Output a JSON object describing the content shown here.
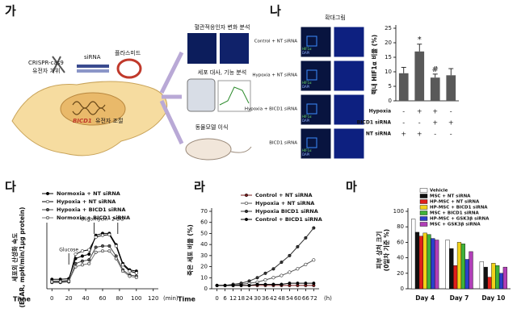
{
  "panels": [
    "가",
    "나",
    "다",
    "라",
    "마"
  ],
  "diagram": {
    "tools": [
      "CRISPR-cas9",
      "유전자 가위",
      "siRNA",
      "플라스미드"
    ],
    "gene": "BICD1",
    "gene_suffix": "유전자 조절",
    "analyses": [
      "혈관적응인자 변화 분석",
      "세포 대사, 기능 분석",
      "동물모델 이식"
    ]
  },
  "micrographs": {
    "title": "확대그림",
    "rows": [
      "Control + NT siRNA",
      "Hypoxia + NT siRNA",
      "Hypoxia + BICD1 siRNA",
      "BICD1 siRNA"
    ],
    "stain_labels": [
      "HIF1α",
      "DAPI"
    ]
  },
  "chart_data": [
    {
      "type": "bar",
      "ylabel": "핵내 HIF1α 비율 (%)",
      "values": [
        9.5,
        17,
        8,
        8.8
      ],
      "errors": [
        2,
        2.5,
        1.2,
        2.3
      ],
      "bar_labels": [
        null,
        "*",
        "#",
        null
      ],
      "color": "#595959",
      "ylim": [
        0,
        25
      ],
      "yticks": [
        0,
        5,
        10,
        15,
        20,
        25
      ],
      "conditions": [
        {
          "name": "Hypoxia",
          "marks": [
            "-",
            "+",
            "+",
            "-"
          ]
        },
        {
          "name": "BICD1 siRNA",
          "marks": [
            "-",
            "-",
            "+",
            "+"
          ]
        },
        {
          "name": "NT siRNA",
          "marks": [
            "+",
            "+",
            "-",
            "-"
          ]
        }
      ]
    },
    {
      "type": "line",
      "ylabel": [
        "세포외 산성화 속도",
        "(ECAR, mpH/min/1μg protein)"
      ],
      "xlabel": "Time",
      "xunit": "(min)",
      "x": [
        0,
        10,
        20,
        28,
        36,
        44,
        52,
        60,
        68,
        76,
        84,
        92,
        100
      ],
      "xlim": [
        -6,
        126
      ],
      "xticks": [
        0,
        20,
        40,
        60,
        80,
        100,
        120
      ],
      "ylim": [
        0,
        100
      ],
      "series": [
        {
          "name": "Normoxia + NT siRNA",
          "color": "#000000",
          "marker": "#000000",
          "values": [
            15,
            15,
            16,
            48,
            52,
            55,
            85,
            88,
            88,
            70,
            40,
            30,
            28
          ]
        },
        {
          "name": "Hypoxia + NT siRNA",
          "color": "#000000",
          "marker": "#ffffff",
          "values": [
            12,
            12,
            13,
            55,
            60,
            62,
            82,
            85,
            86,
            68,
            38,
            28,
            25
          ]
        },
        {
          "name": "Hypoxia + BICD1 siRNA",
          "color": "#444444",
          "marker": "#555555",
          "values": [
            10,
            10,
            11,
            40,
            44,
            46,
            66,
            68,
            68,
            52,
            30,
            22,
            20
          ]
        },
        {
          "name": "Normoxia + BICD1 siRNA",
          "color": "#777777",
          "marker": "#dddddd",
          "values": [
            11,
            11,
            12,
            35,
            38,
            40,
            58,
            60,
            60,
            48,
            28,
            20,
            18
          ]
        }
      ],
      "annotations": [
        {
          "text": "Glucose",
          "x": 20
        },
        {
          "text": "Oligomycin",
          "x": 50
        },
        {
          "text": "2-DG",
          "x": 78
        }
      ]
    },
    {
      "type": "line",
      "ylabel": [
        "죽은 세포 비율 (%)"
      ],
      "xlabel": "Time",
      "xunit": "(h)",
      "x": [
        0,
        6,
        12,
        18,
        24,
        30,
        36,
        42,
        48,
        54,
        60,
        66,
        72
      ],
      "xlim": [
        -4,
        76
      ],
      "xticks": [
        0,
        6,
        12,
        18,
        24,
        30,
        36,
        42,
        48,
        54,
        60,
        66,
        72
      ],
      "ylim": [
        0,
        70
      ],
      "yticks": [
        0,
        10,
        20,
        30,
        40,
        50,
        60,
        70
      ],
      "series": [
        {
          "name": "Control + NT siRNA",
          "color": "#7a1c1c",
          "marker": "#7a1c1c",
          "values": [
            3,
            3,
            3,
            3,
            3,
            3,
            3,
            3,
            3,
            3,
            3,
            3,
            3
          ]
        },
        {
          "name": "Hypoxia + NT siRNA",
          "color": "#555555",
          "marker": "#ffffff",
          "values": [
            3,
            3,
            3,
            4,
            5,
            6,
            8,
            10,
            12,
            15,
            18,
            22,
            26
          ]
        },
        {
          "name": "Hypoxia BICD1 siRNA",
          "color": "#333333",
          "marker": "#333333",
          "values": [
            3,
            3,
            4,
            5,
            7,
            10,
            14,
            18,
            24,
            30,
            38,
            46,
            55
          ]
        },
        {
          "name": "Control + BICD1 siRNA",
          "color": "#000000",
          "marker": "#000000",
          "values": [
            3,
            3,
            3,
            3,
            3,
            4,
            4,
            4,
            4,
            5,
            5,
            5,
            5
          ]
        }
      ]
    },
    {
      "type": "grouped_bar",
      "ylabel": [
        "피부 상처 크기",
        "(0일차 기준 %)"
      ],
      "categories": [
        "Day 4",
        "Day 7",
        "Day 10"
      ],
      "ylim": [
        0,
        100
      ],
      "yticks": [
        0,
        20,
        40,
        60,
        80,
        100
      ],
      "series": [
        {
          "name": "Vehicle",
          "color": "#ffffff",
          "values": [
            90,
            63,
            35
          ]
        },
        {
          "name": "MSC + NT siRNA",
          "color": "#111111",
          "values": [
            73,
            52,
            28
          ]
        },
        {
          "name": "HP-MSC + NT siRNA",
          "color": "#e0201b",
          "values": [
            68,
            30,
            15
          ]
        },
        {
          "name": "HP-MSC + BICD1 siRNA",
          "color": "#f2d21a",
          "values": [
            72,
            60,
            33
          ]
        },
        {
          "name": "MSC + BICD1 siRNA",
          "color": "#3fb23a",
          "values": [
            70,
            58,
            30
          ]
        },
        {
          "name": "HP-MSC + GSK3β siRNA",
          "color": "#2b3fc9",
          "values": [
            65,
            38,
            20
          ]
        },
        {
          "name": "MSC + GSK3β siRNA",
          "color": "#b13fb8",
          "values": [
            63,
            48,
            28
          ]
        }
      ]
    }
  ]
}
